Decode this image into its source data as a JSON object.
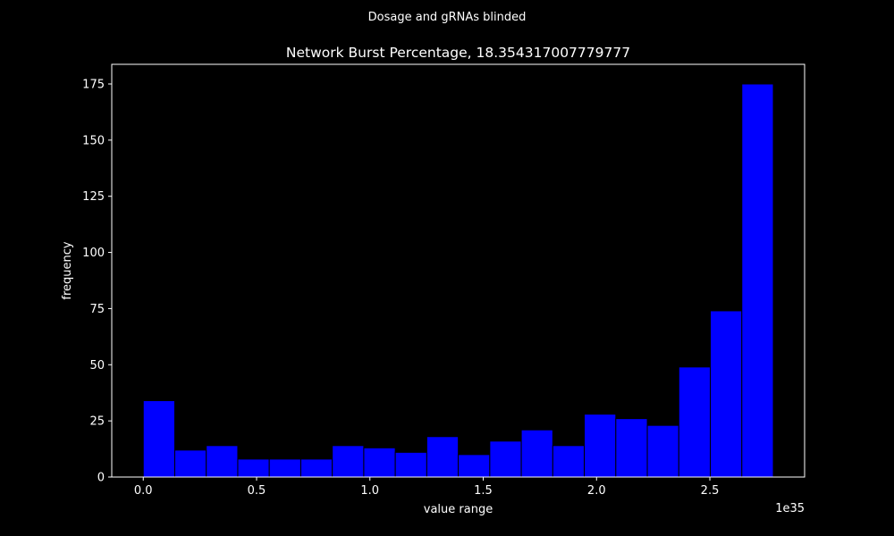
{
  "suptitle": "Dosage and gRNAs blinded",
  "colors": {
    "background": "#000000",
    "foreground": "#ffffff",
    "bar_fill": "#0000ff",
    "bar_edge": "#000000"
  },
  "chart_data": {
    "type": "bar",
    "title": "Network Burst Percentage, 18.354317007779777",
    "xlabel": "value range",
    "ylabel": "frequency",
    "x_offset_label": "1e35",
    "xlim": [
      -0.139,
      2.918
    ],
    "ylim": [
      0,
      183.75
    ],
    "grid": false,
    "xticks": [
      0.0,
      0.5,
      1.0,
      1.5,
      2.0,
      2.5
    ],
    "xtick_labels": [
      "0.0",
      "0.5",
      "1.0",
      "1.5",
      "2.0",
      "2.5"
    ],
    "yticks": [
      0,
      25,
      50,
      75,
      100,
      125,
      150,
      175
    ],
    "ytick_labels": [
      "0",
      "25",
      "50",
      "75",
      "100",
      "125",
      "150",
      "175"
    ],
    "bin_edges": [
      0.0,
      0.139,
      0.278,
      0.417,
      0.556,
      0.695,
      0.834,
      0.973,
      1.112,
      1.251,
      1.39,
      1.529,
      1.668,
      1.807,
      1.946,
      2.085,
      2.224,
      2.363,
      2.502,
      2.641,
      2.78
    ],
    "values": [
      34,
      12,
      14,
      8,
      8,
      8,
      14,
      13,
      11,
      18,
      10,
      16,
      21,
      14,
      28,
      26,
      23,
      49,
      74,
      175
    ]
  }
}
